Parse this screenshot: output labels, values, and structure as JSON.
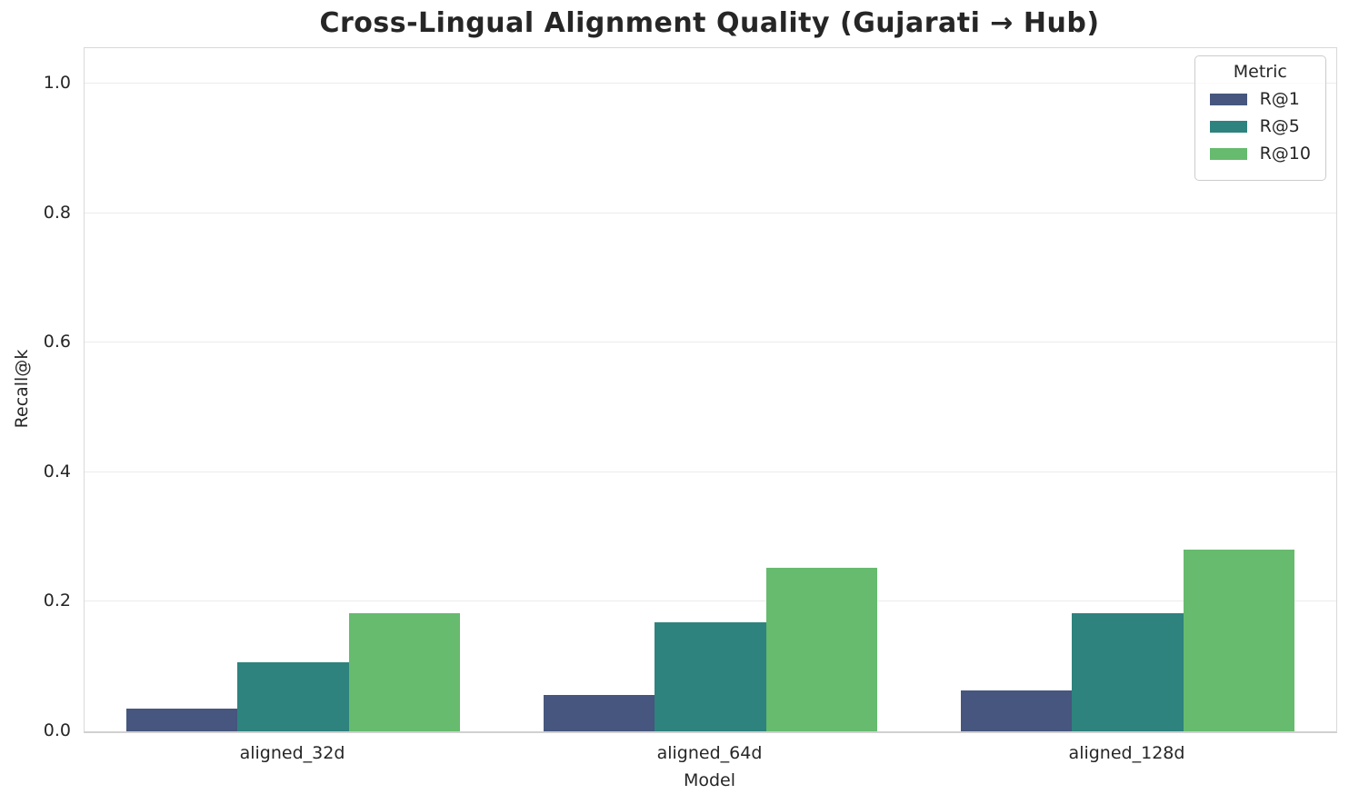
{
  "chart_data": {
    "type": "bar",
    "title": "Cross-Lingual Alignment Quality (Gujarati → Hub)",
    "xlabel": "Model",
    "ylabel": "Recall@k",
    "categories": [
      "aligned_32d",
      "aligned_64d",
      "aligned_128d"
    ],
    "series": [
      {
        "name": "R@1",
        "color": "#46567e",
        "values": [
          0.035,
          0.056,
          0.063
        ]
      },
      {
        "name": "R@5",
        "color": "#2e837e",
        "values": [
          0.107,
          0.169,
          0.183
        ]
      },
      {
        "name": "R@10",
        "color": "#66bb6e",
        "values": [
          0.183,
          0.253,
          0.28
        ]
      }
    ],
    "legend_title": "Metric",
    "legend_position": "upper right",
    "ytick_labels": [
      "0.0",
      "0.2",
      "0.4",
      "0.6",
      "0.8",
      "1.0"
    ],
    "yticks": [
      0.0,
      0.2,
      0.4,
      0.6,
      0.8,
      1.0
    ],
    "ylim": [
      0,
      1.055
    ],
    "grid": true,
    "bar_group_width_frac": 0.8
  },
  "style": {
    "grid_color": "#ececec",
    "spine_color": "#d9d9d9",
    "baseline_color": "#d0d0d0",
    "text_color": "#262626",
    "legend_border_color": "#cccccc",
    "background": "#ffffff"
  }
}
